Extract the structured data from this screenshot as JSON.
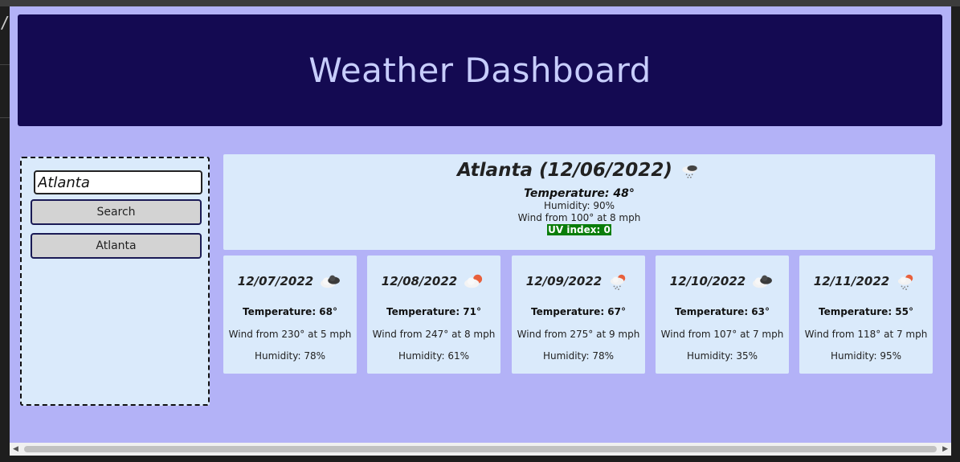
{
  "header": {
    "title": "Weather Dashboard"
  },
  "search": {
    "value": "Atlanta",
    "button_label": "Search"
  },
  "history": [
    {
      "label": "Atlanta"
    }
  ],
  "current": {
    "title": "Atlanta (12/06/2022)",
    "icon": "rain-snow-cloud-icon",
    "temperature": "Temperature: 48°",
    "humidity": "Humidity: 90%",
    "wind": "Wind from 100° at 8 mph",
    "uv": "UV index: 0",
    "uv_color": "#0a7d0a"
  },
  "forecast": [
    {
      "date": "12/07/2022",
      "icon": "cloudy-icon",
      "temperature": "Temperature: 68°",
      "wind": "Wind from 230° at 5 mph",
      "humidity": "Humidity: 78%"
    },
    {
      "date": "12/08/2022",
      "icon": "partly-sunny-icon",
      "temperature": "Temperature: 71°",
      "wind": "Wind from 247° at 8 mph",
      "humidity": "Humidity: 61%"
    },
    {
      "date": "12/09/2022",
      "icon": "sun-rain-icon",
      "temperature": "Temperature: 67°",
      "wind": "Wind from 275° at 9 mph",
      "humidity": "Humidity: 78%"
    },
    {
      "date": "12/10/2022",
      "icon": "cloudy-icon",
      "temperature": "Temperature: 63°",
      "wind": "Wind from 107° at 7 mph",
      "humidity": "Humidity: 35%"
    },
    {
      "date": "12/11/2022",
      "icon": "sun-rain-icon",
      "temperature": "Temperature: 55°",
      "wind": "Wind from 118° at 7 mph",
      "humidity": "Humidity: 95%"
    }
  ],
  "colors": {
    "page_background": "#b3b2f7",
    "header_background": "#140a52",
    "card_background": "#daeafb",
    "title_text": "#c7cdfc"
  }
}
